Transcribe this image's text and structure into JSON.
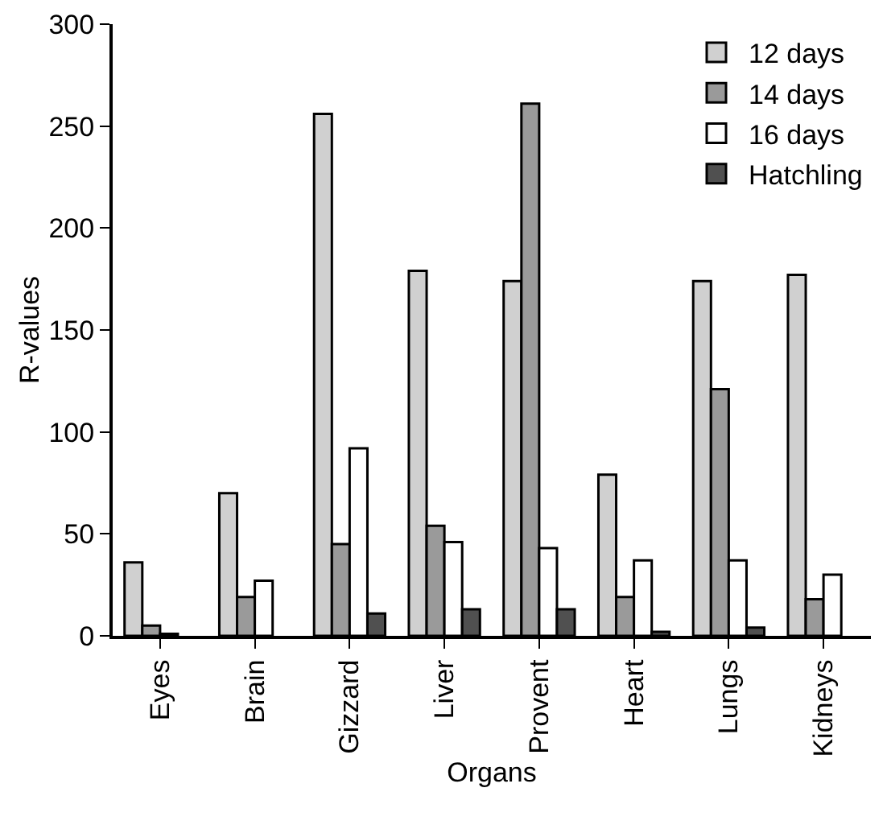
{
  "chart_data": {
    "type": "bar",
    "xlabel": "Organs",
    "ylabel": "R-values",
    "categories": [
      "Eyes",
      "Brain",
      "Gizzard",
      "Liver",
      "Provent",
      "Heart",
      "Lungs",
      "Kidneys"
    ],
    "series": [
      {
        "name": "12 days",
        "color": "#d0d0d0",
        "values": [
          36,
          70,
          256,
          179,
          174,
          79,
          174,
          177
        ]
      },
      {
        "name": "14 days",
        "color": "#9a9a9a",
        "values": [
          5,
          19,
          45,
          54,
          261,
          19,
          121,
          18
        ]
      },
      {
        "name": "16 days",
        "color": "#ffffff",
        "values": [
          1,
          27,
          92,
          46,
          43,
          37,
          37,
          30
        ]
      },
      {
        "name": "Hatchling",
        "color": "#505050",
        "values": [
          null,
          null,
          11,
          13,
          13,
          2,
          4,
          null
        ]
      }
    ],
    "ylim": [
      0,
      300
    ],
    "yticks": [
      0,
      50,
      100,
      150,
      200,
      250,
      300
    ],
    "grid": false,
    "legend": "top right"
  }
}
